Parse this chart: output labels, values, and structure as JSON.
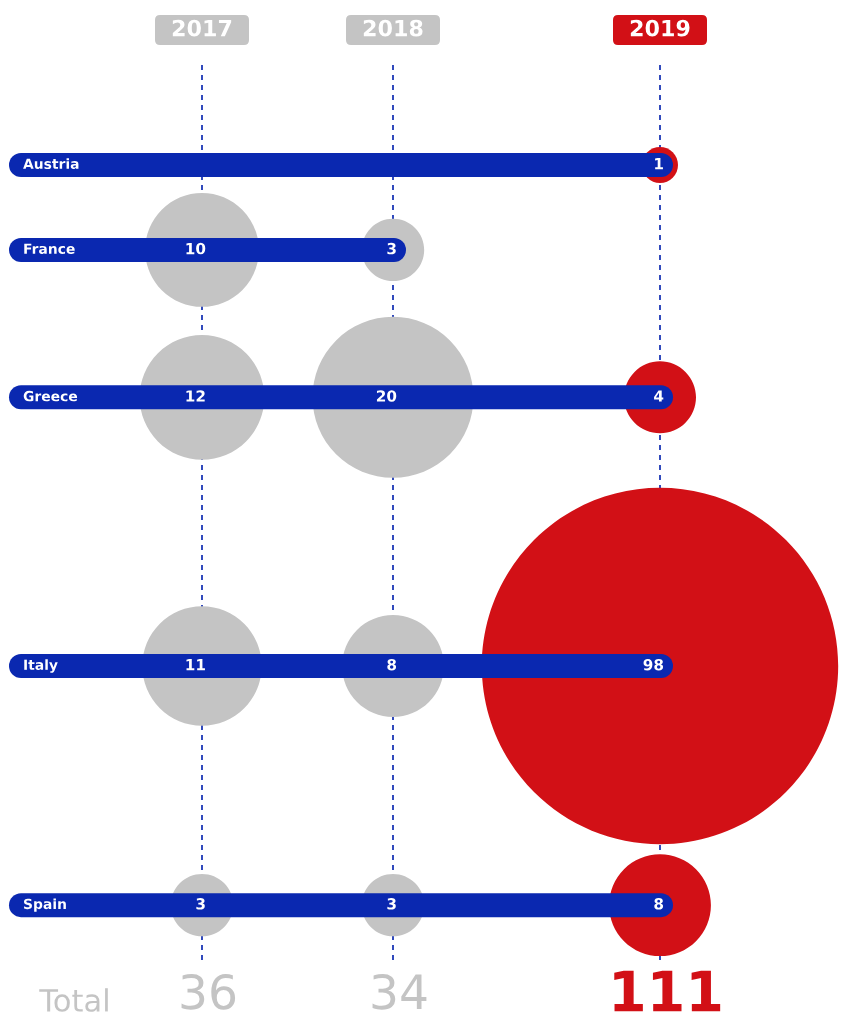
{
  "chart_data": {
    "type": "other",
    "categories": [
      "Austria",
      "France",
      "Greece",
      "Italy",
      "Spain"
    ],
    "series": [
      {
        "name": "2017",
        "color": "#c4c4c4",
        "values": [
          null,
          10,
          12,
          11,
          3
        ]
      },
      {
        "name": "2018",
        "color": "#c4c4c4",
        "values": [
          null,
          3,
          20,
          8,
          3
        ]
      },
      {
        "name": "2019",
        "color": "#d21016",
        "values": [
          1,
          null,
          4,
          98,
          8
        ]
      }
    ],
    "data_labels": true,
    "totals": [
      "36",
      "34",
      "111"
    ],
    "annotations": [
      "Total"
    ]
  }
}
